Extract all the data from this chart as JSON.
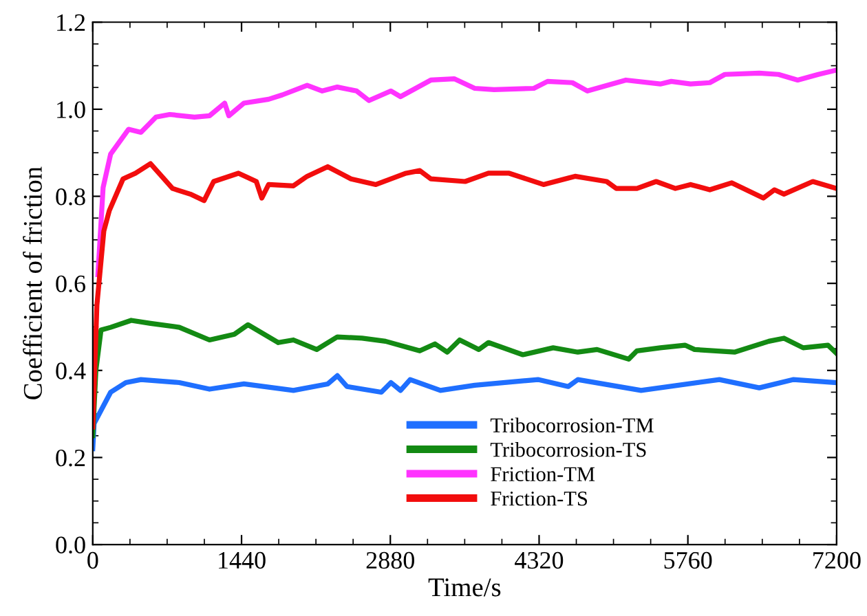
{
  "chart_data": {
    "type": "line",
    "xlabel": "Time/s",
    "ylabel": "Coefficient of friction",
    "xlim": [
      0,
      7200
    ],
    "ylim": [
      0,
      1.2
    ],
    "xticks": [
      0,
      1440,
      2880,
      4320,
      5760,
      7200
    ],
    "yticks": [
      {
        "value": 0,
        "label": "0.0"
      },
      {
        "value": 0.2,
        "label": "0.2"
      },
      {
        "value": 0.4,
        "label": "0.4"
      },
      {
        "value": 0.6,
        "label": "0.6"
      },
      {
        "value": 0.8,
        "label": "0.8"
      },
      {
        "value": 1.0,
        "label": "1.0"
      },
      {
        "value": 1.2,
        "label": "1.2"
      }
    ],
    "grid": false,
    "legend": "bottom right",
    "marker": "none",
    "line_style": "solid",
    "series": [
      {
        "name": "Tribocorrosion-TM",
        "color": "#1f6fff",
        "x": [
          0,
          13,
          173,
          320,
          466,
          838,
          1130,
          1463,
          1942,
          2274,
          2367,
          2460,
          2793,
          2886,
          2979,
          3072,
          3365,
          3697,
          4309,
          4602,
          4695,
          5307,
          6065,
          6451,
          6783,
          7200
        ],
        "values": [
          0.22,
          0.278,
          0.35,
          0.372,
          0.379,
          0.372,
          0.357,
          0.369,
          0.354,
          0.369,
          0.388,
          0.363,
          0.35,
          0.372,
          0.354,
          0.379,
          0.354,
          0.366,
          0.379,
          0.363,
          0.379,
          0.354,
          0.379,
          0.36,
          0.379,
          0.372
        ]
      },
      {
        "name": "Tribocorrosion-TS",
        "color": "#138a13",
        "x": [
          0,
          30,
          80,
          173,
          372,
          559,
          838,
          1130,
          1370,
          1503,
          1796,
          1942,
          2168,
          2367,
          2607,
          2833,
          3165,
          3312,
          3431,
          3551,
          3737,
          3830,
          4163,
          4456,
          4695,
          4881,
          5187,
          5267,
          5493,
          5732,
          5825,
          6211,
          6544,
          6690,
          6876,
          7116,
          7200
        ],
        "values": [
          0.25,
          0.4,
          0.493,
          0.499,
          0.515,
          0.508,
          0.499,
          0.47,
          0.483,
          0.505,
          0.464,
          0.47,
          0.448,
          0.477,
          0.474,
          0.467,
          0.445,
          0.461,
          0.442,
          0.47,
          0.448,
          0.464,
          0.436,
          0.452,
          0.442,
          0.448,
          0.426,
          0.445,
          0.452,
          0.458,
          0.448,
          0.442,
          0.467,
          0.474,
          0.452,
          0.458,
          0.439
        ]
      },
      {
        "name": "Friction-TM",
        "color": "#ff33ff",
        "x": [
          50,
          100,
          173,
          346,
          466,
          612,
          745,
          984,
          1130,
          1277,
          1317,
          1463,
          1702,
          1835,
          2075,
          2221,
          2367,
          2554,
          2673,
          2886,
          2979,
          3272,
          3498,
          3697,
          3884,
          4269,
          4402,
          4642,
          4788,
          5160,
          5493,
          5599,
          5786,
          5972,
          6118,
          6451,
          6637,
          6823,
          7022,
          7200
        ],
        "values": [
          0.62,
          0.82,
          0.897,
          0.954,
          0.947,
          0.982,
          0.988,
          0.982,
          0.985,
          1.014,
          0.985,
          1.014,
          1.023,
          1.033,
          1.055,
          1.042,
          1.051,
          1.042,
          1.02,
          1.042,
          1.029,
          1.067,
          1.07,
          1.048,
          1.045,
          1.048,
          1.064,
          1.061,
          1.042,
          1.067,
          1.058,
          1.064,
          1.058,
          1.061,
          1.08,
          1.083,
          1.08,
          1.067,
          1.08,
          1.09
        ]
      },
      {
        "name": "Friction-TS",
        "color": "#f20d0d",
        "x": [
          0,
          40,
          107,
          160,
          293,
          413,
          559,
          772,
          944,
          1077,
          1170,
          1410,
          1583,
          1636,
          1702,
          1942,
          2075,
          2274,
          2500,
          2740,
          3032,
          3165,
          3272,
          3604,
          3830,
          4030,
          4362,
          4668,
          4974,
          5067,
          5267,
          5453,
          5639,
          5786,
          5972,
          6185,
          6490,
          6597,
          6690,
          6969,
          7200
        ],
        "values": [
          0.27,
          0.55,
          0.72,
          0.767,
          0.84,
          0.853,
          0.875,
          0.818,
          0.805,
          0.79,
          0.834,
          0.853,
          0.834,
          0.796,
          0.827,
          0.824,
          0.846,
          0.868,
          0.84,
          0.827,
          0.853,
          0.859,
          0.84,
          0.834,
          0.853,
          0.853,
          0.827,
          0.846,
          0.834,
          0.818,
          0.818,
          0.834,
          0.818,
          0.827,
          0.815,
          0.831,
          0.796,
          0.815,
          0.805,
          0.834,
          0.818
        ]
      }
    ]
  }
}
